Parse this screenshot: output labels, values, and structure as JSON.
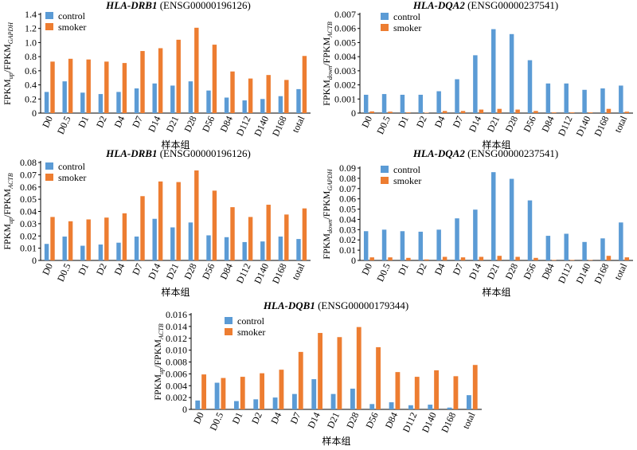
{
  "colors": {
    "control": "#5b9bd5",
    "smoker": "#ed7d31",
    "axis": "#000000"
  },
  "chart_data": [
    {
      "type": "bar",
      "title_gene": "HLA-DRB1",
      "title_id": " (ENSG00000196126)",
      "ylabel_main": "FPKM",
      "ylabel_sub1": "up",
      "ylabel_mid": "/FPKM",
      "ylabel_sub2": "GAPDH",
      "xlabel": "样本组",
      "categories": [
        "D0",
        "D0.5",
        "D1",
        "D2",
        "D4",
        "D7",
        "D14",
        "D21",
        "D28",
        "D56",
        "D84",
        "D112",
        "D140",
        "D168",
        "total"
      ],
      "ylim": [
        0,
        1.4
      ],
      "yticks": [
        "0",
        "0.2",
        "0.4",
        "0.6",
        "0.8",
        "1.0",
        "1.2",
        "1.4"
      ],
      "legend": [
        "control",
        "smoker"
      ],
      "series": [
        {
          "name": "control",
          "values": [
            0.3,
            0.45,
            0.29,
            0.27,
            0.3,
            0.35,
            0.42,
            0.39,
            0.45,
            0.32,
            0.22,
            0.18,
            0.2,
            0.24,
            0.34
          ]
        },
        {
          "name": "smoker",
          "values": [
            0.73,
            0.77,
            0.76,
            0.73,
            0.71,
            0.88,
            0.92,
            1.04,
            1.21,
            0.97,
            0.59,
            0.49,
            0.54,
            0.47,
            0.81
          ]
        }
      ]
    },
    {
      "type": "bar",
      "title_gene": "HLA-DQA2",
      "title_id": " (ENSG00000237541)",
      "ylabel_main": "FPKM",
      "ylabel_sub1": "down",
      "ylabel_mid": "/FPKM",
      "ylabel_sub2": "ACTB",
      "xlabel": "样本组",
      "categories": [
        "D0",
        "D0.5",
        "D1",
        "D2",
        "D4",
        "D7",
        "D14",
        "D21",
        "D28",
        "D56",
        "D84",
        "D112",
        "D140",
        "D168",
        "total"
      ],
      "ylim": [
        0,
        0.007
      ],
      "yticks": [
        "0",
        "0.001",
        "0.002",
        "0.003",
        "0.004",
        "0.005",
        "0.006",
        "0.007"
      ],
      "legend": [
        "control",
        "smoker"
      ],
      "series": [
        {
          "name": "control",
          "values": [
            0.0013,
            0.00135,
            0.0013,
            0.0013,
            0.00155,
            0.0024,
            0.0041,
            0.00595,
            0.0056,
            0.00375,
            0.0021,
            0.0021,
            0.00165,
            0.00175,
            0.00195
          ]
        },
        {
          "name": "smoker",
          "values": [
            0.00012,
            0.0001,
            5e-05,
            3e-05,
            0.00015,
            0.00015,
            0.00025,
            0.0003,
            0.00025,
            0.00015,
            5e-05,
            5e-05,
            5e-05,
            0.0003,
            0.0001
          ]
        }
      ]
    },
    {
      "type": "bar",
      "title_gene": "HLA-DRB1",
      "title_id": " (ENSG00000196126)",
      "ylabel_main": "FPKM",
      "ylabel_sub1": "up",
      "ylabel_mid": "/FPKM",
      "ylabel_sub2": "ACTB",
      "xlabel": "样本组",
      "categories": [
        "D0",
        "D0.5",
        "D1",
        "D2",
        "D4",
        "D7",
        "D14",
        "D21",
        "D28",
        "D56",
        "D84",
        "D112",
        "D140",
        "D168",
        "total"
      ],
      "ylim": [
        0,
        0.08
      ],
      "yticks": [
        "0",
        "0.01",
        "0.02",
        "0.03",
        "0.04",
        "0.05",
        "0.06",
        "0.07",
        "0.08"
      ],
      "legend": [
        "control",
        "smoker"
      ],
      "series": [
        {
          "name": "control",
          "values": [
            0.0135,
            0.0195,
            0.012,
            0.013,
            0.0145,
            0.0195,
            0.034,
            0.027,
            0.031,
            0.0205,
            0.019,
            0.015,
            0.0155,
            0.0195,
            0.0175
          ]
        },
        {
          "name": "smoker",
          "values": [
            0.0355,
            0.032,
            0.0335,
            0.035,
            0.0385,
            0.0525,
            0.0645,
            0.064,
            0.0735,
            0.057,
            0.0435,
            0.0355,
            0.0455,
            0.0375,
            0.0425
          ]
        }
      ]
    },
    {
      "type": "bar",
      "title_gene": "HLA-DQA2",
      "title_id": " (ENSG00000237541)",
      "ylabel_main": "FPKM",
      "ylabel_sub1": "down",
      "ylabel_mid": "/FPKM",
      "ylabel_sub2": "GAPDH",
      "xlabel": "样本组",
      "categories": [
        "D0",
        "D0.5",
        "D1",
        "D2",
        "D4",
        "D7",
        "D14",
        "D21",
        "D28",
        "D56",
        "D84",
        "D112",
        "D140",
        "D168",
        "total"
      ],
      "ylim": [
        0,
        0.09
      ],
      "yticks": [
        "0",
        "0.01",
        "0.02",
        "0.03",
        "0.04",
        "0.05",
        "0.06",
        "0.07",
        "0.08",
        "0.09"
      ],
      "legend": [
        "control",
        "smoker"
      ],
      "series": [
        {
          "name": "control",
          "values": [
            0.0285,
            0.03,
            0.0285,
            0.028,
            0.03,
            0.041,
            0.0495,
            0.086,
            0.0795,
            0.0585,
            0.024,
            0.026,
            0.018,
            0.0215,
            0.037
          ]
        },
        {
          "name": "smoker",
          "values": [
            0.003,
            0.003,
            0.0025,
            0.001,
            0.0035,
            0.003,
            0.0035,
            0.0045,
            0.0035,
            0.0025,
            0.0005,
            0.0005,
            0.0005,
            0.0045,
            0.003
          ]
        }
      ]
    },
    {
      "type": "bar",
      "title_gene": "HLA-DQB1",
      "title_id": " (ENSG00000179344)",
      "ylabel_main": "FPKM",
      "ylabel_sub1": "up",
      "ylabel_mid": "/FPKM",
      "ylabel_sub2": "ACTB",
      "xlabel": "样本组",
      "categories": [
        "D0",
        "D0.5",
        "D1",
        "D2",
        "D4",
        "D7",
        "D14",
        "D21",
        "D28",
        "D56",
        "D84",
        "D112",
        "D140",
        "D168",
        "total"
      ],
      "ylim": [
        0,
        0.016
      ],
      "yticks": [
        "0",
        "0.002",
        "0.004",
        "0.006",
        "0.008",
        "0.010",
        "0.012",
        "0.014",
        "0.016"
      ],
      "legend": [
        "control",
        "smoker"
      ],
      "series": [
        {
          "name": "control",
          "values": [
            0.0015,
            0.0045,
            0.0014,
            0.0017,
            0.002,
            0.0026,
            0.0051,
            0.0026,
            0.0035,
            0.0009,
            0.0012,
            0.0007,
            0.0008,
            0.0003,
            0.0024
          ]
        },
        {
          "name": "smoker",
          "values": [
            0.0059,
            0.0053,
            0.0055,
            0.0061,
            0.0067,
            0.0097,
            0.0129,
            0.0122,
            0.0139,
            0.0105,
            0.0063,
            0.0055,
            0.0066,
            0.0056,
            0.0075
          ]
        }
      ]
    }
  ]
}
